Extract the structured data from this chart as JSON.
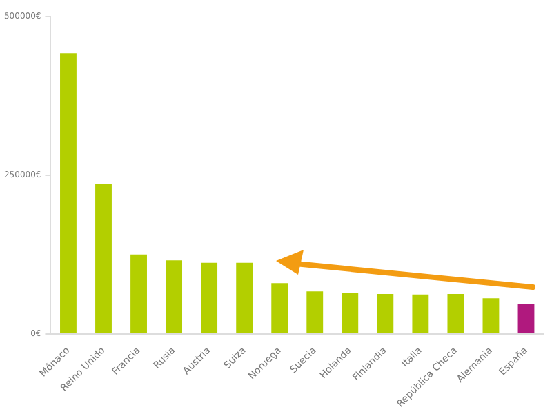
{
  "chart_data": {
    "type": "bar",
    "categories": [
      "Mónaco",
      "Reino Unido",
      "Francia",
      "Rusia",
      "Austria",
      "Suiza",
      "Noruega",
      "Suecia",
      "Holanda",
      "Finlandia",
      "Italia",
      "República Checa",
      "Alemania",
      "España"
    ],
    "values": [
      442000,
      236000,
      125000,
      116000,
      112000,
      112000,
      80000,
      67000,
      65000,
      63000,
      62000,
      63000,
      56000,
      47000
    ],
    "colors": [
      "#b3cf00",
      "#b3cf00",
      "#b3cf00",
      "#b3cf00",
      "#b3cf00",
      "#b3cf00",
      "#b3cf00",
      "#b3cf00",
      "#b3cf00",
      "#b3cf00",
      "#b3cf00",
      "#b3cf00",
      "#b3cf00",
      "#b0197e"
    ],
    "ylim": [
      0,
      500000
    ],
    "yticks": [
      {
        "value": 0,
        "label": "0€"
      },
      {
        "value": 250000,
        "label": "250000€"
      },
      {
        "value": 500000,
        "label": "500000€"
      }
    ],
    "grid": false,
    "legend": false
  }
}
